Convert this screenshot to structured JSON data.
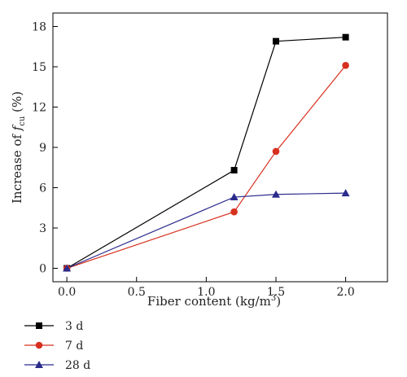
{
  "chart_data": {
    "type": "line",
    "x": [
      0.0,
      1.2,
      1.5,
      2.0
    ],
    "series": [
      {
        "name": "3 d",
        "values": [
          0.0,
          7.3,
          16.9,
          17.2
        ],
        "color": "#000000",
        "marker": "square"
      },
      {
        "name": "7 d",
        "values": [
          0.0,
          4.2,
          8.7,
          15.1
        ],
        "color": "#d7301f",
        "marker": "circle"
      },
      {
        "name": "28 d",
        "values": [
          0.0,
          5.3,
          5.5,
          5.6
        ],
        "color": "#2b2b8c",
        "marker": "triangle"
      }
    ],
    "xlabel": "Fiber content (kg/m",
    "xlabel_sup": "3",
    "xlabel_tail": ")",
    "ylabel_prefix": "Increase of ",
    "ylabel_f": "f",
    "ylabel_sub": "cu",
    "ylabel_suffix": " (%)",
    "xticks": [
      "0.0",
      "0.5",
      "1.0",
      "1.5",
      "2.0"
    ],
    "yticks": [
      "0",
      "3",
      "6",
      "9",
      "12",
      "15",
      "18"
    ],
    "xlim": [
      -0.1,
      2.3
    ],
    "ylim": [
      -1,
      19
    ],
    "legend_position": "bottom-left"
  }
}
